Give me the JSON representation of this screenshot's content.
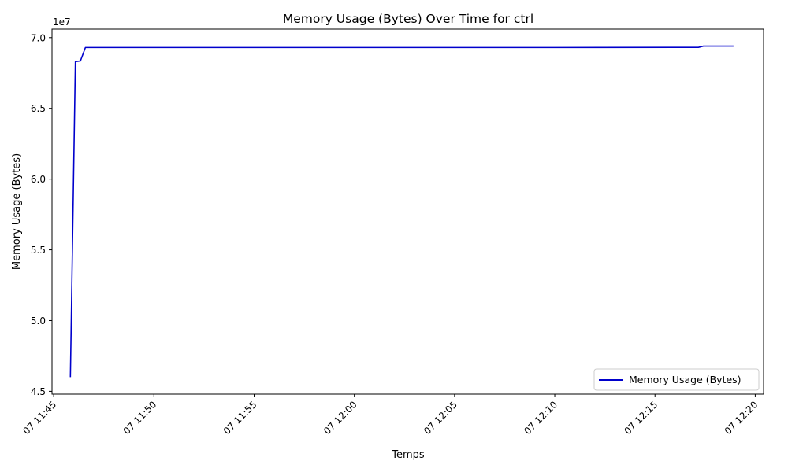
{
  "chart_data": {
    "type": "line",
    "title": "Memory Usage (Bytes) Over Time for ctrl",
    "xlabel": "Temps",
    "ylabel": "Memory Usage (Bytes)",
    "y_offset_label": "1e7",
    "y_scale": 10000000,
    "xlim": [
      "07 11:44:55",
      "07 12:20:25"
    ],
    "ylim": [
      44800000,
      70600000
    ],
    "x_ticks": [
      {
        "t": "07 11:45:00",
        "label": "07 11:45"
      },
      {
        "t": "07 11:50:00",
        "label": "07 11:50"
      },
      {
        "t": "07 11:55:00",
        "label": "07 11:55"
      },
      {
        "t": "07 12:00:00",
        "label": "07 12:00"
      },
      {
        "t": "07 12:05:00",
        "label": "07 12:05"
      },
      {
        "t": "07 12:10:00",
        "label": "07 12:10"
      },
      {
        "t": "07 12:15:00",
        "label": "07 12:15"
      },
      {
        "t": "07 12:20:00",
        "label": "07 12:20"
      }
    ],
    "y_ticks": [
      {
        "v": 45000000,
        "label": "4.5"
      },
      {
        "v": 50000000,
        "label": "5.0"
      },
      {
        "v": 55000000,
        "label": "5.5"
      },
      {
        "v": 60000000,
        "label": "6.0"
      },
      {
        "v": 65000000,
        "label": "6.5"
      },
      {
        "v": 70000000,
        "label": "7.0"
      }
    ],
    "grid": false,
    "legend_position": "lower-right",
    "series": [
      {
        "name": "Memory Usage (Bytes)",
        "color": "#0000cc",
        "points": [
          {
            "t": "07 11:45:50",
            "y": 46000000
          },
          {
            "t": "07 11:46:05",
            "y": 68300000
          },
          {
            "t": "07 11:46:20",
            "y": 68350000
          },
          {
            "t": "07 11:46:35",
            "y": 69300000
          },
          {
            "t": "07 11:50:00",
            "y": 69300000
          },
          {
            "t": "07 12:00:00",
            "y": 69300000
          },
          {
            "t": "07 12:10:00",
            "y": 69300000
          },
          {
            "t": "07 12:16:00",
            "y": 69310000
          },
          {
            "t": "07 12:17:10",
            "y": 69310000
          },
          {
            "t": "07 12:17:25",
            "y": 69400000
          },
          {
            "t": "07 12:18:55",
            "y": 69400000
          }
        ]
      }
    ]
  }
}
